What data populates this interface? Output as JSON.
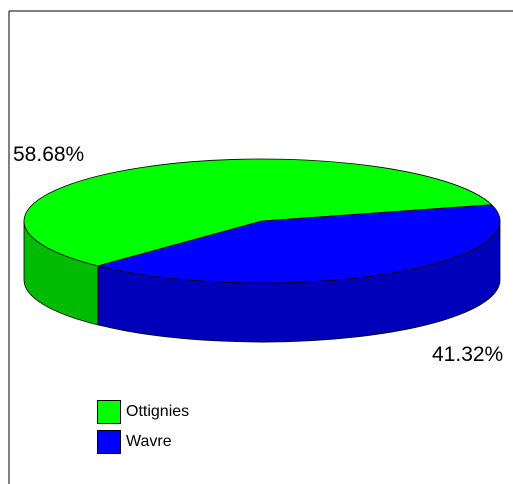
{
  "chart_data": {
    "type": "pie",
    "style": "3d",
    "title": "",
    "series": [
      {
        "name": "Ottignies",
        "value": 58.68,
        "label": "58.68%",
        "color": "#00ff00",
        "side_color": "#00bb00"
      },
      {
        "name": "Wavre",
        "value": 41.32,
        "label": "41.32%",
        "color": "#0000ff",
        "side_color": "#0000bb"
      }
    ],
    "legend": {
      "position": "bottom-left"
    }
  }
}
